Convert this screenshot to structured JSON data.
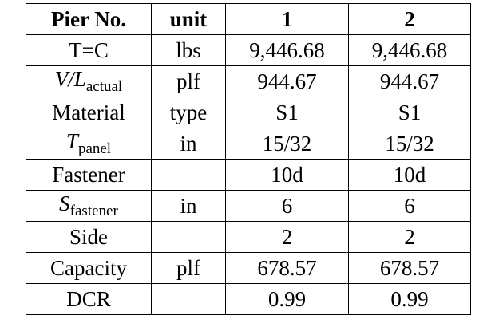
{
  "table": {
    "header": [
      "Pier No.",
      "unit",
      "1",
      "2"
    ],
    "rows": [
      [
        "T=C",
        "lbs",
        "9,446.68",
        "9,446.68"
      ],
      [
        {
          "main": "V/L",
          "sub": "actual"
        },
        "plf",
        "944.67",
        "944.67"
      ],
      [
        "Material",
        "type",
        "S1",
        "S1"
      ],
      [
        {
          "main": "T",
          "sub": "panel"
        },
        "in",
        "15/32",
        "15/32"
      ],
      [
        "Fastener",
        null,
        "10d",
        "10d"
      ],
      [
        {
          "main": "S",
          "sub": "fastener"
        },
        "in",
        "6",
        "6"
      ],
      [
        "Side",
        null,
        "2",
        "2"
      ],
      [
        "Capacity",
        "plf",
        "678.57",
        "678.57"
      ],
      [
        "DCR",
        null,
        "0.99",
        "0.99"
      ]
    ]
  }
}
